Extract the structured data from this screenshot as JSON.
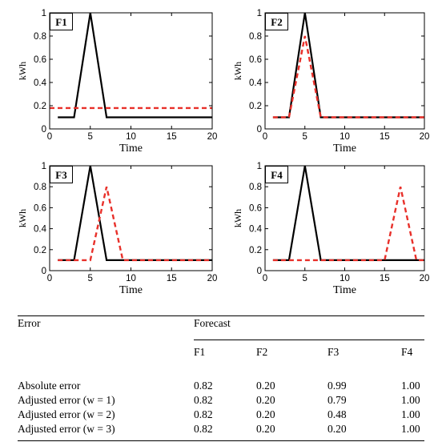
{
  "chart_data": [
    {
      "type": "line",
      "panel_label": "F1",
      "xlabel": "Time",
      "ylabel": "kWh",
      "xlim": [
        0,
        20
      ],
      "ylim": [
        0,
        1
      ],
      "xticks": [
        "0",
        "5",
        "10",
        "15",
        "20"
      ],
      "yticks": [
        "0",
        "0.2",
        "0.4",
        "0.6",
        "0.8",
        "1"
      ],
      "series": [
        {
          "style": "solid",
          "color": "#000000",
          "points": [
            [
              1,
              0.1
            ],
            [
              3,
              0.1
            ],
            [
              5,
              1.0
            ],
            [
              7,
              0.1
            ],
            [
              20,
              0.1
            ]
          ]
        },
        {
          "style": "dashed",
          "color": "#e8302a",
          "points": [
            [
              0,
              0.18
            ],
            [
              20,
              0.18
            ]
          ]
        }
      ]
    },
    {
      "type": "line",
      "panel_label": "F2",
      "xlabel": "Time",
      "ylabel": "kWh",
      "xlim": [
        0,
        20
      ],
      "ylim": [
        0,
        1
      ],
      "xticks": [
        "0",
        "5",
        "10",
        "15",
        "20"
      ],
      "yticks": [
        "0",
        "0.2",
        "0.4",
        "0.6",
        "0.8",
        "1"
      ],
      "series": [
        {
          "style": "solid",
          "color": "#000000",
          "points": [
            [
              1,
              0.1
            ],
            [
              3,
              0.1
            ],
            [
              5,
              1.0
            ],
            [
              7,
              0.1
            ],
            [
              20,
              0.1
            ]
          ]
        },
        {
          "style": "dashed",
          "color": "#e8302a",
          "points": [
            [
              1,
              0.1
            ],
            [
              3,
              0.1
            ],
            [
              5,
              0.8
            ],
            [
              7,
              0.1
            ],
            [
              20,
              0.1
            ]
          ]
        }
      ]
    },
    {
      "type": "line",
      "panel_label": "F3",
      "xlabel": "Time",
      "ylabel": "kWh",
      "xlim": [
        0,
        20
      ],
      "ylim": [
        0,
        1
      ],
      "xticks": [
        "0",
        "5",
        "10",
        "15",
        "20"
      ],
      "yticks": [
        "0",
        "0.2",
        "0.4",
        "0.6",
        "0.8",
        "1"
      ],
      "series": [
        {
          "style": "solid",
          "color": "#000000",
          "points": [
            [
              1,
              0.1
            ],
            [
              3,
              0.1
            ],
            [
              5,
              1.0
            ],
            [
              7,
              0.1
            ],
            [
              20,
              0.1
            ]
          ]
        },
        {
          "style": "dashed",
          "color": "#e8302a",
          "points": [
            [
              1,
              0.1
            ],
            [
              5,
              0.1
            ],
            [
              7,
              0.8
            ],
            [
              9,
              0.1
            ],
            [
              20,
              0.1
            ]
          ]
        }
      ]
    },
    {
      "type": "line",
      "panel_label": "F4",
      "xlabel": "Time",
      "ylabel": "kWh",
      "xlim": [
        0,
        20
      ],
      "ylim": [
        0,
        1
      ],
      "xticks": [
        "0",
        "5",
        "10",
        "15",
        "20"
      ],
      "yticks": [
        "0",
        "0.2",
        "0.4",
        "0.6",
        "0.8",
        "1"
      ],
      "series": [
        {
          "style": "solid",
          "color": "#000000",
          "points": [
            [
              1,
              0.1
            ],
            [
              3,
              0.1
            ],
            [
              5,
              1.0
            ],
            [
              7,
              0.1
            ],
            [
              20,
              0.1
            ]
          ]
        },
        {
          "style": "dashed",
          "color": "#e8302a",
          "points": [
            [
              1,
              0.1
            ],
            [
              15,
              0.1
            ],
            [
              17,
              0.8
            ],
            [
              19,
              0.1
            ],
            [
              20,
              0.1
            ]
          ]
        }
      ]
    },
    {
      "type": "table",
      "row_header": "Error",
      "column_group": "Forecast",
      "columns": [
        "F1",
        "F2",
        "F3",
        "F4"
      ],
      "rows": [
        {
          "label": "Absolute error",
          "values": [
            "0.82",
            "0.20",
            "0.99",
            "1.00"
          ]
        },
        {
          "label": "Adjusted error (w = 1)",
          "values": [
            "0.82",
            "0.20",
            "0.79",
            "1.00"
          ]
        },
        {
          "label": "Adjusted error (w = 2)",
          "values": [
            "0.82",
            "0.20",
            "0.48",
            "1.00"
          ]
        },
        {
          "label": "Adjusted error (w = 3)",
          "values": [
            "0.82",
            "0.20",
            "0.20",
            "1.00"
          ]
        }
      ]
    }
  ]
}
